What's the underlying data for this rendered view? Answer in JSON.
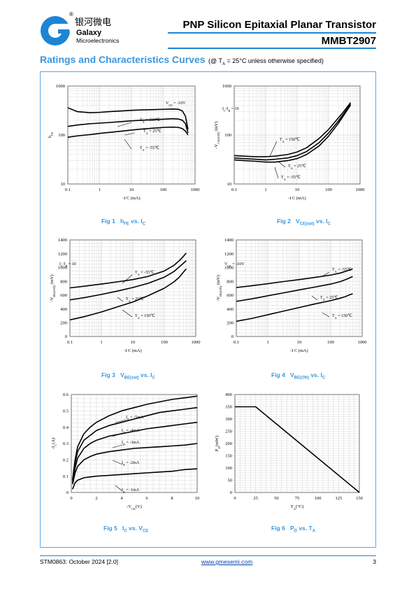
{
  "header": {
    "brand_cn": "银河微电",
    "brand_en": "Galaxy",
    "brand_sub": "Microelectronics",
    "registered": "®",
    "title": "PNP Silicon Epitaxial Planar Transistor",
    "part": "MMBT2907"
  },
  "section": {
    "title": "Ratings and Characteristics Curves",
    "cond_pre": "(@ T",
    "cond_sub": "A",
    "cond_post": " = 25°C unless otherwise specified)"
  },
  "captions": [
    {
      "num": "Fig 1",
      "main": "h",
      "sub": "FE",
      "rest": " vs. I",
      "sub2": "C"
    },
    {
      "num": "Fig 2",
      "main": "V",
      "sub": "CE(sat)",
      "rest": " vs. I",
      "sub2": "C"
    },
    {
      "num": "Fig 3",
      "main": "V",
      "sub": "BE(sat)",
      "rest": " vs. I",
      "sub2": "C"
    },
    {
      "num": "Fig 4",
      "main": "V",
      "sub": "BE(ON)",
      "rest": " vs. I",
      "sub2": "C"
    },
    {
      "num": "Fig 5",
      "main": "I",
      "sub": "C",
      "rest": " vs. V",
      "sub2": "CE"
    },
    {
      "num": "Fig 6",
      "main": "P",
      "sub": "D",
      "rest": " vs. T",
      "sub2": "A"
    }
  ],
  "footer": {
    "doc": "STM0863: October 2024 [2.0]",
    "url": "www.gmesemi.com",
    "page": "3"
  },
  "chart_data": [
    {
      "id": "fig1",
      "type": "line",
      "xscale": "log",
      "yscale": "log",
      "xlim": [
        0.1,
        1000
      ],
      "ylim": [
        10,
        1000
      ],
      "xticks": [
        "0.1",
        "1",
        "10",
        "100",
        "1000"
      ],
      "yticks": [
        "10",
        "100",
        "1000"
      ],
      "xlabel": "-I C (mA)",
      "ylabel": "hFE",
      "annotations": [
        "VCE = -10V",
        "TA = 150℃",
        "TA = 25℃",
        "TA = -55℃"
      ],
      "series": [
        {
          "name": "TA = 150℃",
          "x": [
            0.1,
            0.2,
            0.5,
            1,
            2,
            5,
            10,
            20,
            50,
            100,
            200,
            300,
            400,
            500,
            600
          ],
          "y": [
            360,
            300,
            285,
            290,
            300,
            310,
            320,
            325,
            330,
            335,
            340,
            335,
            310,
            240,
            130
          ]
        },
        {
          "name": "TA = 25℃",
          "x": [
            0.1,
            0.2,
            0.5,
            1,
            2,
            5,
            10,
            20,
            50,
            100,
            200,
            300,
            400,
            500,
            600
          ],
          "y": [
            150,
            160,
            170,
            175,
            180,
            188,
            195,
            200,
            205,
            210,
            215,
            212,
            200,
            170,
            110
          ]
        },
        {
          "name": "TA = -55℃",
          "x": [
            0.1,
            0.2,
            0.5,
            1,
            2,
            5,
            10,
            20,
            50,
            100,
            200,
            300,
            400,
            500,
            600
          ],
          "y": [
            90,
            96,
            102,
            108,
            113,
            120,
            126,
            132,
            138,
            143,
            145,
            143,
            135,
            120,
            100
          ]
        }
      ]
    },
    {
      "id": "fig2",
      "type": "line",
      "xscale": "log",
      "yscale": "log",
      "xlim": [
        0.1,
        1000
      ],
      "ylim": [
        10,
        1000
      ],
      "xticks": [
        "0.1",
        "1",
        "10",
        "100",
        "1000"
      ],
      "yticks": [
        "10",
        "100",
        "1000"
      ],
      "xlabel": "-I C (mA)",
      "ylabel": "-VCE(SAT) (mV)",
      "annotations": [
        "IC/IB = 10",
        "TA = 150℃",
        "TA = 25℃",
        "TA = -55℃"
      ],
      "series": [
        {
          "name": "TA = -55℃",
          "x": [
            0.1,
            0.2,
            0.5,
            1,
            2,
            5,
            10,
            20,
            50,
            100,
            200,
            300,
            400,
            500
          ],
          "y": [
            38,
            37,
            36,
            36,
            37,
            40,
            45,
            55,
            85,
            130,
            220,
            300,
            380,
            460
          ]
        },
        {
          "name": "TA = 25℃",
          "x": [
            0.1,
            0.2,
            0.5,
            1,
            2,
            5,
            10,
            20,
            50,
            100,
            200,
            300,
            400,
            500
          ],
          "y": [
            34,
            33,
            32,
            31,
            32,
            34,
            38,
            46,
            70,
            110,
            190,
            270,
            350,
            430
          ]
        },
        {
          "name": "TA = 150℃",
          "x": [
            0.1,
            0.2,
            0.5,
            1,
            2,
            5,
            10,
            20,
            50,
            100,
            200,
            300,
            400,
            500
          ],
          "y": [
            31,
            30,
            29,
            28,
            28,
            30,
            33,
            40,
            60,
            95,
            170,
            250,
            330,
            410
          ]
        }
      ]
    },
    {
      "id": "fig3",
      "type": "line",
      "xscale": "log",
      "yscale": "linear",
      "xlim": [
        0.1,
        1000
      ],
      "ylim": [
        0,
        1400
      ],
      "xticks": [
        "0.1",
        "1",
        "10",
        "100",
        "1000"
      ],
      "yticks": [
        "0",
        "200",
        "400",
        "600",
        "800",
        "1000",
        "1200",
        "1400"
      ],
      "xlabel": "-I C (mA)",
      "ylabel": "-VBE(SAT) (mV)",
      "annotations": [
        "IC/IB = 10",
        "TA = -55℃",
        "TA = 25℃",
        "TA = 150℃"
      ],
      "series": [
        {
          "name": "TA = -55℃",
          "x": [
            0.1,
            0.3,
            1,
            3,
            10,
            30,
            100,
            200,
            300,
            400,
            500
          ],
          "y": [
            705,
            730,
            760,
            790,
            825,
            870,
            950,
            1030,
            1100,
            1160,
            1210
          ]
        },
        {
          "name": "TA = 25℃",
          "x": [
            0.1,
            0.3,
            1,
            3,
            10,
            30,
            100,
            200,
            300,
            400,
            500
          ],
          "y": [
            530,
            565,
            610,
            655,
            710,
            770,
            860,
            940,
            1010,
            1060,
            1100
          ]
        },
        {
          "name": "TA = 150℃",
          "x": [
            0.1,
            0.3,
            1,
            3,
            10,
            30,
            100,
            200,
            300,
            400,
            500
          ],
          "y": [
            240,
            290,
            355,
            425,
            500,
            590,
            700,
            790,
            860,
            930,
            980
          ]
        }
      ]
    },
    {
      "id": "fig4",
      "type": "line",
      "xscale": "log",
      "yscale": "linear",
      "xlim": [
        0.1,
        1000
      ],
      "ylim": [
        0,
        1400
      ],
      "xticks": [
        "0.1",
        "1",
        "10",
        "100",
        "1000"
      ],
      "yticks": [
        "0",
        "200",
        "400",
        "600",
        "800",
        "1000",
        "1200",
        "1400"
      ],
      "xlabel": "-I C (mA)",
      "ylabel": "-VBE(ON) (mV)",
      "annotations": [
        "VCE = -10V",
        "TA = -55℃",
        "TA = 25℃",
        "TA = 150℃"
      ],
      "series": [
        {
          "name": "TA = -55℃",
          "x": [
            0.1,
            0.3,
            1,
            3,
            10,
            30,
            100,
            200,
            300,
            400,
            500
          ],
          "y": [
            710,
            735,
            765,
            795,
            825,
            855,
            890,
            920,
            945,
            965,
            980
          ]
        },
        {
          "name": "TA = 25℃",
          "x": [
            0.1,
            0.3,
            1,
            3,
            10,
            30,
            100,
            200,
            300,
            400,
            500
          ],
          "y": [
            510,
            545,
            590,
            630,
            675,
            715,
            760,
            795,
            825,
            850,
            870
          ]
        },
        {
          "name": "TA = 150℃",
          "x": [
            0.1,
            0.3,
            1,
            3,
            10,
            30,
            100,
            200,
            300,
            400,
            500
          ],
          "y": [
            220,
            260,
            315,
            365,
            420,
            470,
            520,
            555,
            580,
            605,
            620
          ]
        }
      ]
    },
    {
      "id": "fig5",
      "type": "line",
      "xscale": "linear",
      "yscale": "linear",
      "xlim": [
        0,
        10
      ],
      "ylim": [
        0,
        0.6
      ],
      "xticks": [
        "0",
        "2",
        "4",
        "6",
        "8",
        "10"
      ],
      "yticks": [
        "0",
        "0.1",
        "0.2",
        "0.3",
        "0.4",
        "0.5",
        "0.6"
      ],
      "xlabel": "-VCE(V)",
      "ylabel": "-IC(A)",
      "annotations": [
        "IB = -5mA",
        "IB = -4mA",
        "IB = -3mA",
        "IB = -2mA",
        "IB = -1mA"
      ],
      "series": [
        {
          "name": "IB = -5mA",
          "x": [
            0.1,
            0.3,
            0.5,
            1,
            1.5,
            2,
            3,
            4,
            5,
            6,
            7,
            8,
            9,
            10
          ],
          "y": [
            0.08,
            0.2,
            0.28,
            0.36,
            0.4,
            0.43,
            0.47,
            0.5,
            0.52,
            0.54,
            0.555,
            0.57,
            0.58,
            0.59
          ]
        },
        {
          "name": "IB = -4mA",
          "x": [
            0.1,
            0.3,
            0.5,
            1,
            1.5,
            2,
            3,
            4,
            5,
            6,
            7,
            8,
            9,
            10
          ],
          "y": [
            0.07,
            0.18,
            0.25,
            0.32,
            0.35,
            0.38,
            0.41,
            0.43,
            0.45,
            0.47,
            0.49,
            0.5,
            0.51,
            0.52
          ]
        },
        {
          "name": "IB = -3mA",
          "x": [
            0.1,
            0.3,
            0.5,
            1,
            1.5,
            2,
            3,
            4,
            5,
            6,
            7,
            8,
            9,
            10
          ],
          "y": [
            0.06,
            0.15,
            0.21,
            0.27,
            0.3,
            0.32,
            0.345,
            0.36,
            0.375,
            0.39,
            0.4,
            0.41,
            0.42,
            0.43
          ]
        },
        {
          "name": "IB = -2mA",
          "x": [
            0.1,
            0.3,
            0.5,
            1,
            1.5,
            2,
            3,
            4,
            5,
            6,
            7,
            8,
            9,
            10
          ],
          "y": [
            0.05,
            0.12,
            0.16,
            0.2,
            0.22,
            0.235,
            0.25,
            0.26,
            0.27,
            0.275,
            0.28,
            0.285,
            0.29,
            0.3
          ]
        },
        {
          "name": "IB = -1mA",
          "x": [
            0.1,
            0.3,
            0.5,
            1,
            1.5,
            2,
            3,
            4,
            5,
            6,
            7,
            8,
            9,
            10
          ],
          "y": [
            0.02,
            0.06,
            0.075,
            0.09,
            0.095,
            0.1,
            0.105,
            0.11,
            0.115,
            0.12,
            0.125,
            0.13,
            0.14,
            0.145
          ]
        }
      ]
    },
    {
      "id": "fig6",
      "type": "line",
      "xscale": "linear",
      "yscale": "linear",
      "xlim": [
        0,
        150
      ],
      "ylim": [
        0,
        400
      ],
      "xticks": [
        "0",
        "25",
        "50",
        "75",
        "100",
        "125",
        "150"
      ],
      "yticks": [
        "0",
        "50",
        "100",
        "150",
        "200",
        "250",
        "300",
        "350",
        "400"
      ],
      "xlabel": "TA(°C)",
      "ylabel": "PD(mW)",
      "annotations": [],
      "series": [
        {
          "name": "PD",
          "x": [
            0,
            25,
            150
          ],
          "y": [
            350,
            350,
            0
          ]
        }
      ]
    }
  ]
}
